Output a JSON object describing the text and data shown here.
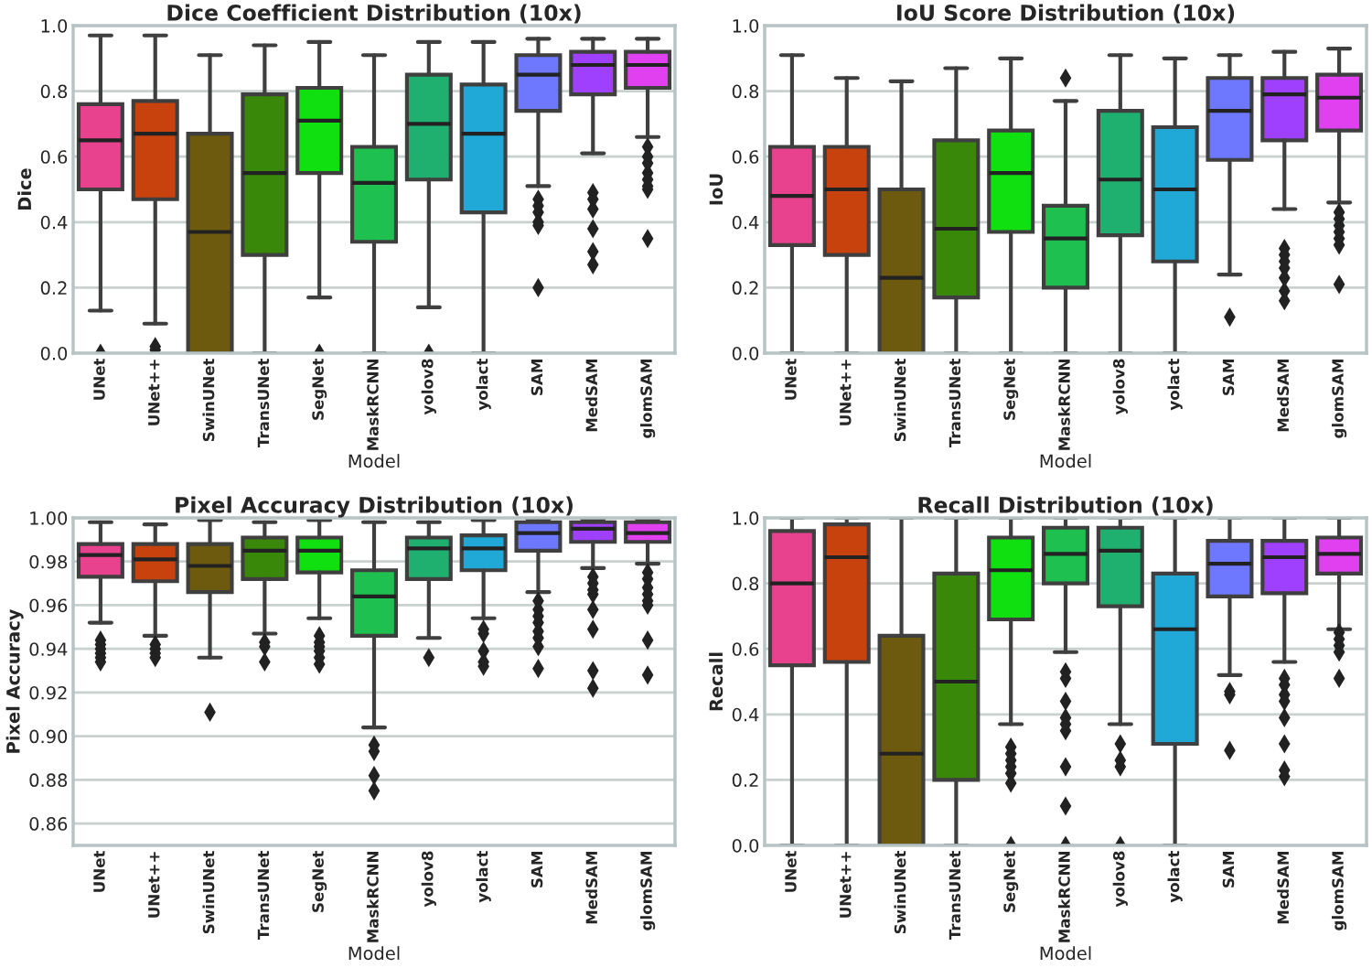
{
  "chart_data": [
    {
      "type": "box",
      "title": "Dice Coefficient Distribution (10x)",
      "xlabel": "Model",
      "ylabel": "Dice",
      "grid": "y",
      "ylim": [
        0,
        1.0
      ],
      "yticks": [
        {
          "value": 0.0,
          "label": "0.0"
        },
        0.2,
        0.4,
        0.6,
        0.8,
        {
          "value": 1.0,
          "label": "1.0"
        }
      ],
      "categories": [
        "UNet",
        "UNet++",
        "SwinUNet",
        "TransUNet",
        "SegNet",
        "MaskRCNN",
        "yolov8",
        "yolact",
        "SAM",
        "MedSAM",
        "glomSAM"
      ],
      "colors": [
        "#e8428e",
        "#c8420e",
        "#6e5a0e",
        "#3a880a",
        "#10e010",
        "#1ec050",
        "#1fb070",
        "#20a8d6",
        "#6e78ff",
        "#a040ff",
        "#e040f0"
      ],
      "boxes": [
        {
          "low": 0.13,
          "q1": 0.5,
          "median": 0.65,
          "q3": 0.76,
          "high": 0.97,
          "outliers": [
            0.0
          ]
        },
        {
          "low": 0.09,
          "q1": 0.47,
          "median": 0.67,
          "q3": 0.77,
          "high": 0.97,
          "outliers": [
            0.01,
            0.02
          ]
        },
        {
          "low": 0.0,
          "q1": 0.0,
          "median": 0.37,
          "q3": 0.67,
          "high": 0.91
        },
        {
          "low": 0.0,
          "q1": 0.3,
          "median": 0.55,
          "q3": 0.79,
          "high": 0.94
        },
        {
          "low": 0.17,
          "q1": 0.55,
          "median": 0.71,
          "q3": 0.81,
          "high": 0.95,
          "outliers": [
            0.0
          ]
        },
        {
          "low": 0.0,
          "q1": 0.34,
          "median": 0.52,
          "q3": 0.63,
          "high": 0.91
        },
        {
          "low": 0.14,
          "q1": 0.53,
          "median": 0.7,
          "q3": 0.85,
          "high": 0.95,
          "outliers": [
            0.0
          ]
        },
        {
          "low": 0.0,
          "q1": 0.43,
          "median": 0.67,
          "q3": 0.82,
          "high": 0.95
        },
        {
          "low": 0.51,
          "q1": 0.74,
          "median": 0.85,
          "q3": 0.91,
          "high": 0.96,
          "outliers": [
            0.47,
            0.45,
            0.43,
            0.4,
            0.39,
            0.2
          ]
        },
        {
          "low": 0.61,
          "q1": 0.79,
          "median": 0.88,
          "q3": 0.92,
          "high": 0.96,
          "outliers": [
            0.49,
            0.47,
            0.44,
            0.38,
            0.31,
            0.27
          ]
        },
        {
          "low": 0.66,
          "q1": 0.81,
          "median": 0.88,
          "q3": 0.92,
          "high": 0.96,
          "outliers": [
            0.63,
            0.6,
            0.58,
            0.55,
            0.53,
            0.51,
            0.5,
            0.35
          ]
        }
      ]
    },
    {
      "type": "box",
      "title": "IoU Score Distribution (10x)",
      "xlabel": "Model",
      "ylabel": "IoU",
      "grid": "y",
      "ylim": [
        0,
        1.0
      ],
      "yticks": [
        {
          "value": 0.0,
          "label": "0.0"
        },
        0.2,
        0.4,
        0.6,
        0.8,
        {
          "value": 1.0,
          "label": "1.0"
        }
      ],
      "categories": [
        "UNet",
        "UNet++",
        "SwinUNet",
        "TransUNet",
        "SegNet",
        "MaskRCNN",
        "yolov8",
        "yolact",
        "SAM",
        "MedSAM",
        "glomSAM"
      ],
      "colors": [
        "#e8428e",
        "#c8420e",
        "#6e5a0e",
        "#3a880a",
        "#10e010",
        "#1ec050",
        "#1fb070",
        "#20a8d6",
        "#6e78ff",
        "#a040ff",
        "#e040f0"
      ],
      "boxes": [
        {
          "low": 0.0,
          "q1": 0.33,
          "median": 0.48,
          "q3": 0.63,
          "high": 0.91
        },
        {
          "low": 0.0,
          "q1": 0.3,
          "median": 0.5,
          "q3": 0.63,
          "high": 0.84
        },
        {
          "low": 0.0,
          "q1": 0.0,
          "median": 0.23,
          "q3": 0.5,
          "high": 0.83
        },
        {
          "low": 0.0,
          "q1": 0.17,
          "median": 0.38,
          "q3": 0.65,
          "high": 0.87
        },
        {
          "low": 0.0,
          "q1": 0.37,
          "median": 0.55,
          "q3": 0.68,
          "high": 0.9
        },
        {
          "low": 0.0,
          "q1": 0.2,
          "median": 0.35,
          "q3": 0.45,
          "high": 0.77,
          "outliers": [
            0.84
          ]
        },
        {
          "low": 0.0,
          "q1": 0.36,
          "median": 0.53,
          "q3": 0.74,
          "high": 0.91
        },
        {
          "low": 0.0,
          "q1": 0.28,
          "median": 0.5,
          "q3": 0.69,
          "high": 0.9
        },
        {
          "low": 0.24,
          "q1": 0.59,
          "median": 0.74,
          "q3": 0.84,
          "high": 0.91,
          "outliers": [
            0.11
          ]
        },
        {
          "low": 0.44,
          "q1": 0.65,
          "median": 0.79,
          "q3": 0.84,
          "high": 0.92,
          "outliers": [
            0.32,
            0.3,
            0.28,
            0.26,
            0.23,
            0.19,
            0.16
          ]
        },
        {
          "low": 0.46,
          "q1": 0.68,
          "median": 0.78,
          "q3": 0.85,
          "high": 0.93,
          "outliers": [
            0.43,
            0.41,
            0.39,
            0.37,
            0.35,
            0.33,
            0.21
          ]
        }
      ]
    },
    {
      "type": "box",
      "title": "Pixel Accuracy Distribution (10x)",
      "xlabel": "Model",
      "ylabel": "Pixel Accuracy",
      "grid": "y",
      "ylim": [
        0.85,
        1.0
      ],
      "yticks": [
        0.86,
        0.88,
        {
          "value": 0.9,
          "label": "0.90"
        },
        0.92,
        0.94,
        0.96,
        0.98,
        {
          "value": 1.0,
          "label": "1.00"
        }
      ],
      "categories": [
        "UNet",
        "UNet++",
        "SwinUNet",
        "TransUNet",
        "SegNet",
        "MaskRCNN",
        "yolov8",
        "yolact",
        "SAM",
        "MedSAM",
        "glomSAM"
      ],
      "colors": [
        "#e8428e",
        "#c8420e",
        "#6e5a0e",
        "#3a880a",
        "#10e010",
        "#1ec050",
        "#1fb070",
        "#20a8d6",
        "#6e78ff",
        "#a040ff",
        "#e040f0"
      ],
      "boxes": [
        {
          "low": 0.952,
          "q1": 0.973,
          "median": 0.983,
          "q3": 0.988,
          "high": 0.998,
          "outliers": [
            0.944,
            0.942,
            0.94,
            0.938,
            0.936,
            0.934
          ]
        },
        {
          "low": 0.946,
          "q1": 0.971,
          "median": 0.981,
          "q3": 0.988,
          "high": 0.997,
          "outliers": [
            0.942,
            0.94,
            0.938,
            0.936
          ]
        },
        {
          "low": 0.936,
          "q1": 0.966,
          "median": 0.978,
          "q3": 0.988,
          "high": 0.999,
          "outliers": [
            0.911
          ]
        },
        {
          "low": 0.947,
          "q1": 0.972,
          "median": 0.985,
          "q3": 0.991,
          "high": 0.998,
          "outliers": [
            0.943,
            0.941,
            0.934
          ]
        },
        {
          "low": 0.954,
          "q1": 0.975,
          "median": 0.985,
          "q3": 0.991,
          "high": 0.999,
          "outliers": [
            0.946,
            0.943,
            0.941,
            0.939,
            0.936,
            0.933
          ]
        },
        {
          "low": 0.904,
          "q1": 0.946,
          "median": 0.964,
          "q3": 0.976,
          "high": 0.998,
          "outliers": [
            0.896,
            0.893,
            0.882,
            0.875
          ]
        },
        {
          "low": 0.945,
          "q1": 0.972,
          "median": 0.986,
          "q3": 0.991,
          "high": 0.998,
          "outliers": [
            0.936
          ]
        },
        {
          "low": 0.954,
          "q1": 0.976,
          "median": 0.986,
          "q3": 0.992,
          "high": 0.999,
          "outliers": [
            0.949,
            0.947,
            0.939,
            0.934,
            0.932
          ]
        },
        {
          "low": 0.966,
          "q1": 0.985,
          "median": 0.993,
          "q3": 0.998,
          "high": 0.9995,
          "outliers": [
            0.962,
            0.958,
            0.955,
            0.952,
            0.948,
            0.945,
            0.941,
            0.931
          ]
        },
        {
          "low": 0.977,
          "q1": 0.989,
          "median": 0.995,
          "q3": 0.998,
          "high": 0.9995,
          "outliers": [
            0.973,
            0.97,
            0.967,
            0.965,
            0.958,
            0.949,
            0.93,
            0.922
          ]
        },
        {
          "low": 0.979,
          "q1": 0.989,
          "median": 0.993,
          "q3": 0.998,
          "high": 0.9995,
          "outliers": [
            0.975,
            0.972,
            0.968,
            0.965,
            0.962,
            0.96,
            0.944,
            0.928
          ]
        }
      ]
    },
    {
      "type": "box",
      "title": "Recall Distribution (10x)",
      "xlabel": "Model",
      "ylabel": "Recall",
      "grid": "y",
      "ylim": [
        0,
        1.0
      ],
      "yticks": [
        {
          "value": 0.0,
          "label": "0.0"
        },
        0.2,
        0.4,
        0.6,
        0.8,
        {
          "value": 1.0,
          "label": "1.0"
        }
      ],
      "categories": [
        "UNet",
        "UNet++",
        "SwinUNet",
        "TransUNet",
        "SegNet",
        "MaskRCNN",
        "yolov8",
        "yolact",
        "SAM",
        "MedSAM",
        "glomSAM"
      ],
      "colors": [
        "#e8428e",
        "#c8420e",
        "#6e5a0e",
        "#3a880a",
        "#10e010",
        "#1ec050",
        "#1fb070",
        "#20a8d6",
        "#6e78ff",
        "#a040ff",
        "#e040f0"
      ],
      "boxes": [
        {
          "low": 0.0,
          "q1": 0.55,
          "median": 0.8,
          "q3": 0.96,
          "high": 1.0
        },
        {
          "low": 0.0,
          "q1": 0.56,
          "median": 0.88,
          "q3": 0.98,
          "high": 1.0
        },
        {
          "low": 0.0,
          "q1": 0.0,
          "median": 0.28,
          "q3": 0.64,
          "high": 1.0
        },
        {
          "low": 0.0,
          "q1": 0.2,
          "median": 0.5,
          "q3": 0.83,
          "high": 1.0
        },
        {
          "low": 0.37,
          "q1": 0.69,
          "median": 0.84,
          "q3": 0.94,
          "high": 1.0,
          "outliers": [
            0.3,
            0.28,
            0.26,
            0.24,
            0.22,
            0.19,
            0.0
          ]
        },
        {
          "low": 0.59,
          "q1": 0.8,
          "median": 0.89,
          "q3": 0.97,
          "high": 1.0,
          "outliers": [
            0.53,
            0.51,
            0.44,
            0.39,
            0.37,
            0.35,
            0.24,
            0.12,
            0.0
          ]
        },
        {
          "low": 0.37,
          "q1": 0.73,
          "median": 0.9,
          "q3": 0.97,
          "high": 1.0,
          "outliers": [
            0.31,
            0.26,
            0.24,
            0.0
          ]
        },
        {
          "low": 0.0,
          "q1": 0.31,
          "median": 0.66,
          "q3": 0.83,
          "high": 1.0
        },
        {
          "low": 0.52,
          "q1": 0.76,
          "median": 0.86,
          "q3": 0.93,
          "high": 1.0,
          "outliers": [
            0.47,
            0.46,
            0.29
          ]
        },
        {
          "low": 0.56,
          "q1": 0.77,
          "median": 0.88,
          "q3": 0.93,
          "high": 1.0,
          "outliers": [
            0.51,
            0.49,
            0.46,
            0.44,
            0.39,
            0.31,
            0.23,
            0.21
          ]
        },
        {
          "low": 0.66,
          "q1": 0.83,
          "median": 0.89,
          "q3": 0.94,
          "high": 1.0,
          "outliers": [
            0.65,
            0.63,
            0.61,
            0.59,
            0.51
          ]
        }
      ]
    }
  ]
}
